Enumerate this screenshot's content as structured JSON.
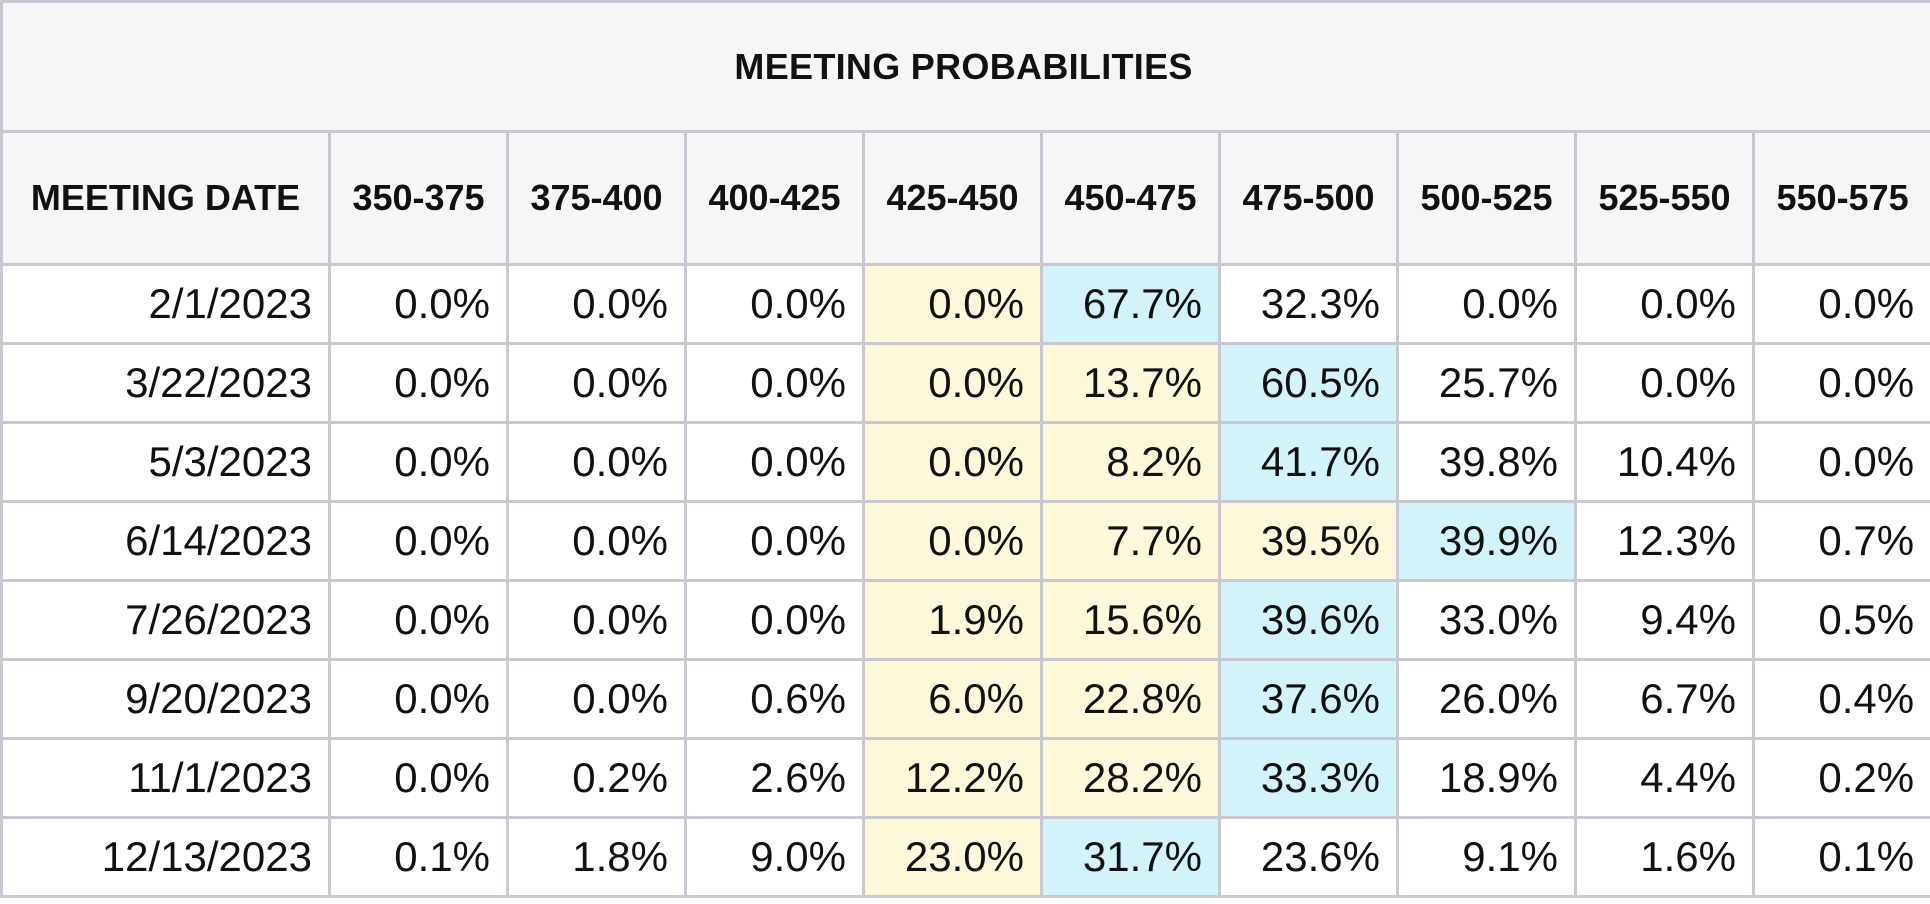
{
  "table": {
    "title": "MEETING PROBABILITIES",
    "date_header": "MEETING DATE",
    "rate_headers": [
      "350-375",
      "375-400",
      "400-425",
      "425-450",
      "450-475",
      "475-500",
      "500-525",
      "525-550",
      "550-575"
    ],
    "colors": {
      "header_background": "#f6f6f6",
      "border": "#c9c7d2",
      "highlight_yellow": "#fcf8d9",
      "highlight_blue": "#d3f3fb"
    },
    "rows": [
      {
        "date": "2/1/2023",
        "values": [
          "0.0%",
          "0.0%",
          "0.0%",
          "0.0%",
          "67.7%",
          "32.3%",
          "0.0%",
          "0.0%",
          "0.0%"
        ],
        "highlights": [
          "",
          "",
          "",
          "yellow",
          "blue",
          "",
          "",
          "",
          ""
        ]
      },
      {
        "date": "3/22/2023",
        "values": [
          "0.0%",
          "0.0%",
          "0.0%",
          "0.0%",
          "13.7%",
          "60.5%",
          "25.7%",
          "0.0%",
          "0.0%"
        ],
        "highlights": [
          "",
          "",
          "",
          "yellow",
          "yellow",
          "blue",
          "",
          "",
          ""
        ]
      },
      {
        "date": "5/3/2023",
        "values": [
          "0.0%",
          "0.0%",
          "0.0%",
          "0.0%",
          "8.2%",
          "41.7%",
          "39.8%",
          "10.4%",
          "0.0%"
        ],
        "highlights": [
          "",
          "",
          "",
          "yellow",
          "yellow",
          "blue",
          "",
          "",
          ""
        ]
      },
      {
        "date": "6/14/2023",
        "values": [
          "0.0%",
          "0.0%",
          "0.0%",
          "0.0%",
          "7.7%",
          "39.5%",
          "39.9%",
          "12.3%",
          "0.7%"
        ],
        "highlights": [
          "",
          "",
          "",
          "yellow",
          "yellow",
          "yellow",
          "blue",
          "",
          ""
        ]
      },
      {
        "date": "7/26/2023",
        "values": [
          "0.0%",
          "0.0%",
          "0.0%",
          "1.9%",
          "15.6%",
          "39.6%",
          "33.0%",
          "9.4%",
          "0.5%"
        ],
        "highlights": [
          "",
          "",
          "",
          "yellow",
          "yellow",
          "blue",
          "",
          "",
          ""
        ]
      },
      {
        "date": "9/20/2023",
        "values": [
          "0.0%",
          "0.0%",
          "0.6%",
          "6.0%",
          "22.8%",
          "37.6%",
          "26.0%",
          "6.7%",
          "0.4%"
        ],
        "highlights": [
          "",
          "",
          "",
          "yellow",
          "yellow",
          "blue",
          "",
          "",
          ""
        ]
      },
      {
        "date": "11/1/2023",
        "values": [
          "0.0%",
          "0.2%",
          "2.6%",
          "12.2%",
          "28.2%",
          "33.3%",
          "18.9%",
          "4.4%",
          "0.2%"
        ],
        "highlights": [
          "",
          "",
          "",
          "yellow",
          "yellow",
          "blue",
          "",
          "",
          ""
        ]
      },
      {
        "date": "12/13/2023",
        "values": [
          "0.1%",
          "1.8%",
          "9.0%",
          "23.0%",
          "31.7%",
          "23.6%",
          "9.1%",
          "1.6%",
          "0.1%"
        ],
        "highlights": [
          "",
          "",
          "",
          "yellow",
          "blue",
          "",
          "",
          "",
          ""
        ]
      }
    ]
  }
}
